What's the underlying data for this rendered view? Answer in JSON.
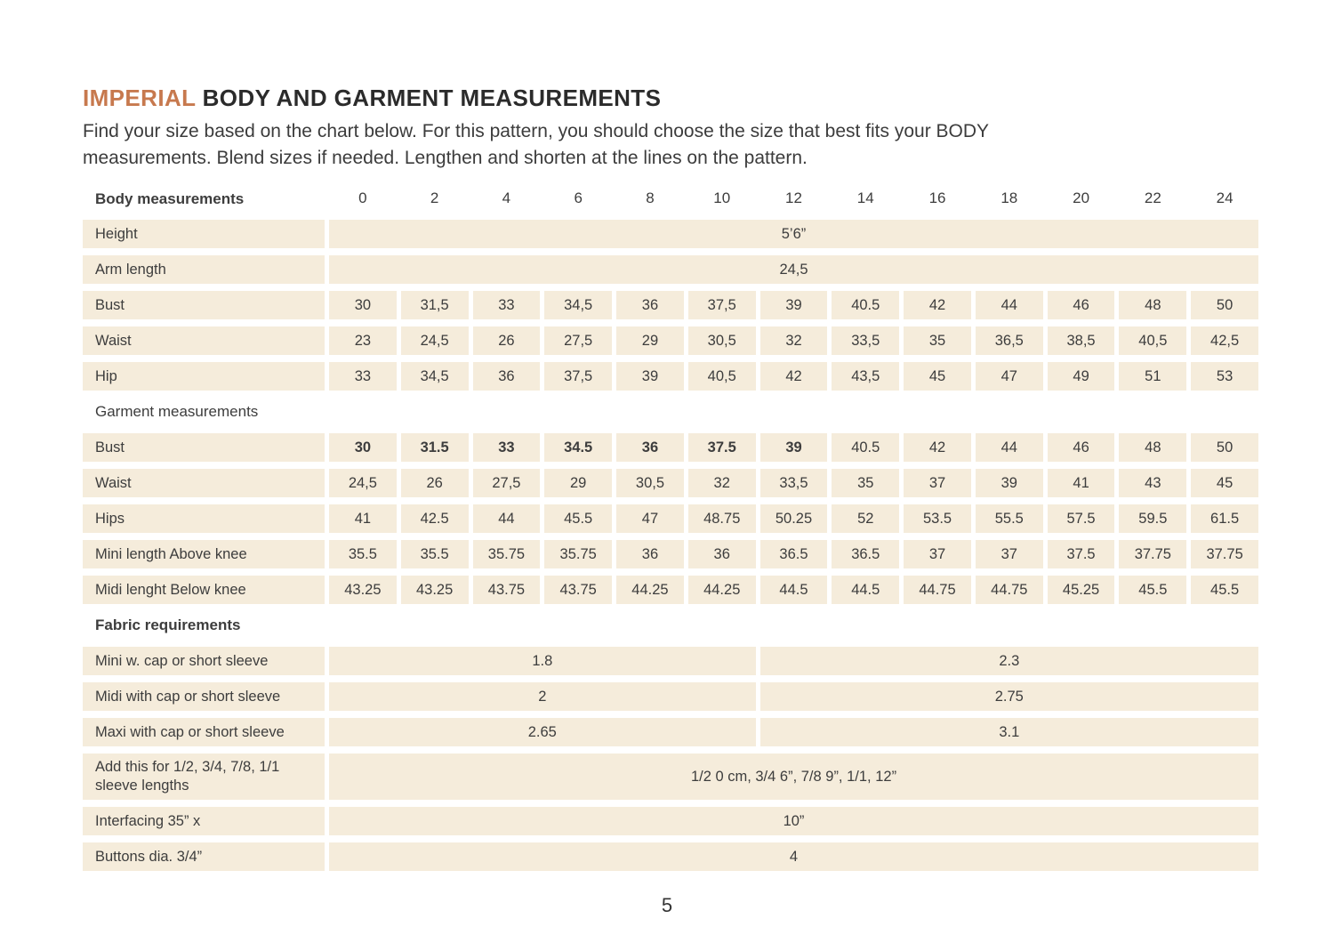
{
  "colors": {
    "accent": "#c7794e",
    "cell_bg": "#f5ecdb",
    "text": "#3d3d3d",
    "title": "#2b2b2b"
  },
  "header": {
    "title_accent": "IMPERIAL",
    "title_rest": " BODY AND GARMENT MEASUREMENTS",
    "subtitle_lines": [
      "Find your size based on the chart below. For this pattern, you should choose the size that best fits your BODY",
      "measurements. Blend sizes if needed. Lengthen and shorten at the lines on the pattern."
    ]
  },
  "table": {
    "header": {
      "label": "Body measurements",
      "sizes": [
        "0",
        "2",
        "4",
        "6",
        "8",
        "10",
        "12",
        "14",
        "16",
        "18",
        "20",
        "22",
        "24"
      ]
    },
    "rows": [
      {
        "type": "span",
        "label": "Height",
        "value": "5’6”"
      },
      {
        "type": "span",
        "label": "Arm length",
        "value": "24,5"
      },
      {
        "type": "cells",
        "label": "Bust",
        "values": [
          "30",
          "31,5",
          "33",
          "34,5",
          "36",
          "37,5",
          "39",
          "40.5",
          "42",
          "44",
          "46",
          "48",
          "50"
        ]
      },
      {
        "type": "cells",
        "label": "Waist",
        "values": [
          "23",
          "24,5",
          "26",
          "27,5",
          "29",
          "30,5",
          "32",
          "33,5",
          "35",
          "36,5",
          "38,5",
          "40,5",
          "42,5"
        ]
      },
      {
        "type": "cells",
        "label": "Hip",
        "values": [
          "33",
          "34,5",
          "36",
          "37,5",
          "39",
          "40,5",
          "42",
          "43,5",
          "45",
          "47",
          "49",
          "51",
          "53"
        ]
      },
      {
        "type": "section",
        "label": "Garment measurements",
        "bold": false
      },
      {
        "type": "cells",
        "label": "Bust",
        "bold_count": 7,
        "values": [
          "30",
          "31.5",
          "33",
          "34.5",
          "36",
          "37.5",
          "39",
          "40.5",
          "42",
          "44",
          "46",
          "48",
          "50"
        ]
      },
      {
        "type": "cells",
        "label": "Waist",
        "values": [
          "24,5",
          "26",
          "27,5",
          "29",
          "30,5",
          "32",
          "33,5",
          "35",
          "37",
          "39",
          "41",
          "43",
          "45"
        ]
      },
      {
        "type": "cells",
        "label": "Hips",
        "values": [
          "41",
          "42.5",
          "44",
          "45.5",
          "47",
          "48.75",
          "50.25",
          "52",
          "53.5",
          "55.5",
          "57.5",
          "59.5",
          "61.5"
        ]
      },
      {
        "type": "cells",
        "label": "Mini length Above knee",
        "values": [
          "35.5",
          "35.5",
          "35.75",
          "35.75",
          "36",
          "36",
          "36.5",
          "36.5",
          "37",
          "37",
          "37.5",
          "37.75",
          "37.75"
        ]
      },
      {
        "type": "cells",
        "label": "Midi lenght Below knee",
        "values": [
          "43.25",
          "43.25",
          "43.75",
          "43.75",
          "44.25",
          "44.25",
          "44.5",
          "44.5",
          "44.75",
          "44.75",
          "45.25",
          "45.5",
          "45.5"
        ]
      },
      {
        "type": "section",
        "label": "Fabric requirements",
        "bold": true
      },
      {
        "type": "split",
        "label": "Mini w. cap or short sleeve",
        "values": [
          "1.8",
          "2.3"
        ]
      },
      {
        "type": "split",
        "label": "Midi with cap or short sleeve",
        "values": [
          "2",
          "2.75"
        ]
      },
      {
        "type": "split",
        "label": "Maxi with cap or short sleeve",
        "values": [
          "2.65",
          "3.1"
        ]
      },
      {
        "type": "span",
        "label": "Add this for 1/2, 3/4, 7/8, 1/1 sleeve lengths",
        "value": "1/2 0 cm, 3/4 6”, 7/8 9”, 1/1, 12”",
        "tall": true
      },
      {
        "type": "span",
        "label": "Interfacing 35” x",
        "value": "10”"
      },
      {
        "type": "span",
        "label": "Buttons dia. 3/4”",
        "value": "4"
      }
    ]
  },
  "footer": {
    "page_number": "5"
  }
}
